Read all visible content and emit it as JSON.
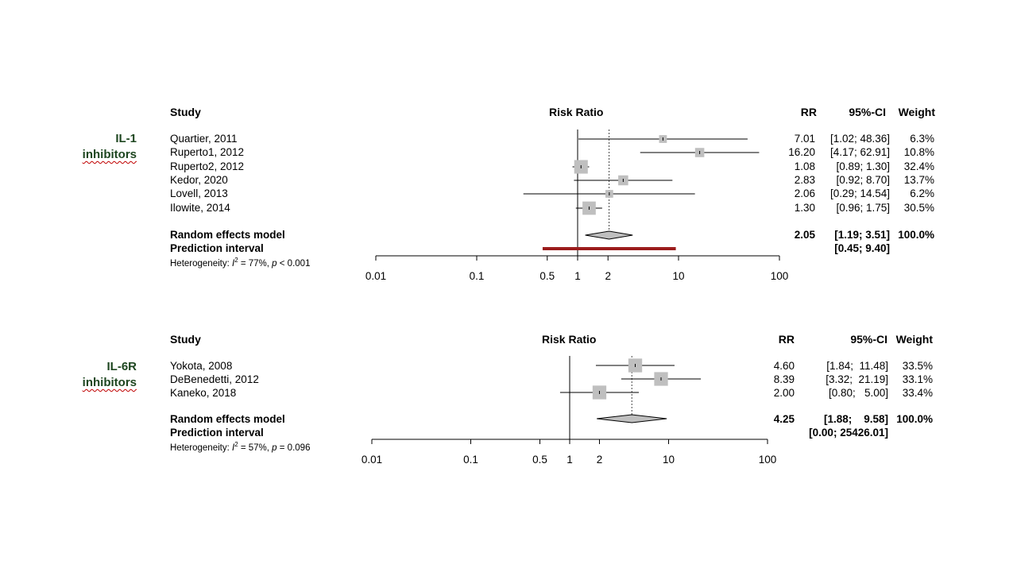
{
  "chart_data": [
    {
      "type": "forest",
      "group_label": [
        "IL-1",
        "inhibitors"
      ],
      "headers": {
        "study": "Study",
        "effect": "Risk Ratio",
        "rr": "RR",
        "ci": "95%-CI",
        "weight": "Weight"
      },
      "studies": [
        {
          "name": "Quartier, 2011",
          "rr": 7.01,
          "lo": 1.02,
          "hi": 48.36,
          "rr_text": "7.01",
          "ci_text": "[1.02; 48.36]",
          "weight": "6.3%",
          "w": 6.3
        },
        {
          "name": "Ruperto1, 2012",
          "rr": 16.2,
          "lo": 4.17,
          "hi": 62.91,
          "rr_text": "16.20",
          "ci_text": "[4.17; 62.91]",
          "weight": "10.8%",
          "w": 10.8
        },
        {
          "name": "Ruperto2, 2012",
          "rr": 1.08,
          "lo": 0.89,
          "hi": 1.3,
          "rr_text": "1.08",
          "ci_text": "[0.89; 1.30]",
          "weight": "32.4%",
          "w": 32.4
        },
        {
          "name": "Kedor, 2020",
          "rr": 2.83,
          "lo": 0.92,
          "hi": 8.7,
          "rr_text": "2.83",
          "ci_text": "[0.92; 8.70]",
          "weight": "13.7%",
          "w": 13.7
        },
        {
          "name": "Lovell, 2013",
          "rr": 2.06,
          "lo": 0.29,
          "hi": 14.54,
          "rr_text": "2.06",
          "ci_text": "[0.29; 14.54]",
          "weight": "6.2%",
          "w": 6.2
        },
        {
          "name": "Ilowite, 2014",
          "rr": 1.3,
          "lo": 0.96,
          "hi": 1.75,
          "rr_text": "1.30",
          "ci_text": "[0.96; 1.75]",
          "weight": "30.5%",
          "w": 30.5
        }
      ],
      "pooled": {
        "label": "Random effects model",
        "rr": 2.05,
        "lo": 1.19,
        "hi": 3.51,
        "rr_text": "2.05",
        "ci_text": "[1.19; 3.51]",
        "weight": "100.0%"
      },
      "prediction": {
        "label": "Prediction interval",
        "lo": 0.45,
        "hi": 9.4,
        "ci_text": "[0.45; 9.40]",
        "color": "#9b1c1c"
      },
      "heterogeneity": {
        "prefix": "Heterogeneity: ",
        "i2_symbol": "I",
        "i2_value": " = 77%, ",
        "p_symbol": "p",
        "p_value": " < 0.001"
      },
      "axis": {
        "scale": "log",
        "range": [
          0.01,
          100
        ],
        "ticks": [
          "0.01",
          "0.1",
          "0.5",
          "1",
          "2",
          "10",
          "100"
        ],
        "tick_values": [
          0.01,
          0.1,
          0.5,
          1,
          2,
          10,
          100
        ]
      }
    },
    {
      "type": "forest",
      "group_label": [
        "IL-6R",
        "inhibitors"
      ],
      "headers": {
        "study": "Study",
        "effect": "Risk Ratio",
        "rr": "RR",
        "ci": "95%-CI",
        "weight": "Weight"
      },
      "studies": [
        {
          "name": "Yokota, 2008",
          "rr": 4.6,
          "lo": 1.84,
          "hi": 11.48,
          "rr_text": "4.60",
          "ci_text": "[1.84;  11.48]",
          "weight": "33.5%",
          "w": 33.5
        },
        {
          "name": "DeBenedetti, 2012",
          "rr": 8.39,
          "lo": 3.32,
          "hi": 21.19,
          "rr_text": "8.39",
          "ci_text": "[3.32;  21.19]",
          "weight": "33.1%",
          "w": 33.1
        },
        {
          "name": "Kaneko, 2018",
          "rr": 2.0,
          "lo": 0.8,
          "hi": 5.0,
          "rr_text": "2.00",
          "ci_text": "[0.80;   5.00]",
          "weight": "33.4%",
          "w": 33.4
        }
      ],
      "pooled": {
        "label": "Random effects model",
        "rr": 4.25,
        "lo": 1.88,
        "hi": 9.58,
        "rr_text": "4.25",
        "ci_text": "[1.88;    9.58]",
        "weight": "100.0%"
      },
      "prediction": {
        "label": "Prediction interval",
        "lo": 0.0,
        "hi": 25426.01,
        "ci_text": "[0.00; 25426.01]",
        "color": ""
      },
      "heterogeneity": {
        "prefix": "Heterogeneity: ",
        "i2_symbol": "I",
        "i2_value": " = 57%, ",
        "p_symbol": "p",
        "p_value": " = 0.096"
      },
      "axis": {
        "scale": "log",
        "range": [
          0.01,
          100
        ],
        "ticks": [
          "0.01",
          "0.1",
          "0.5",
          "1",
          "2",
          "10",
          "100"
        ],
        "tick_values": [
          0.01,
          0.1,
          0.5,
          1,
          2,
          10,
          100
        ]
      }
    }
  ]
}
